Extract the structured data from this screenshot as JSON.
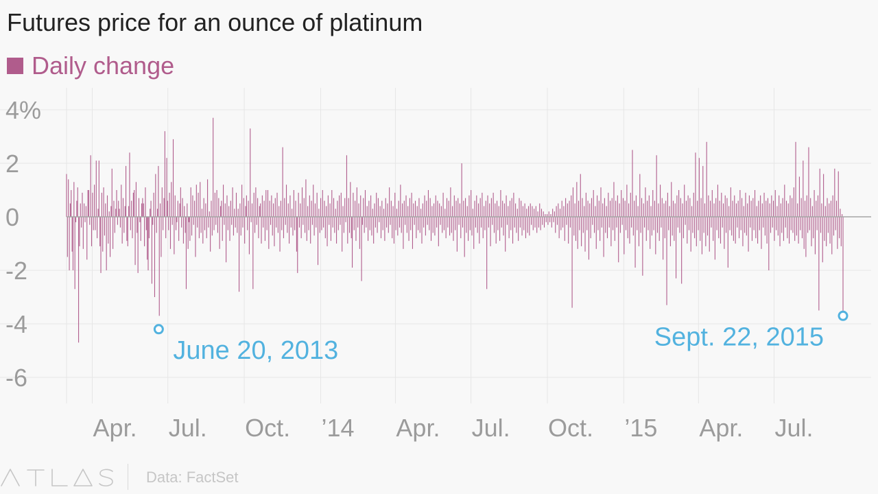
{
  "header": {
    "title": "Futures price for an ounce of platinum"
  },
  "legend": {
    "label": "Daily change",
    "color": "#b05c8c"
  },
  "colors": {
    "background": "#f8f8f8",
    "bars": "#b05c8c",
    "annotation": "#52b2df",
    "axis_text": "#9b9b9b",
    "grid": "#e6e6e6",
    "zero_line": "#a6a6a6",
    "footer_text": "#c6c6c6"
  },
  "footer": {
    "brand": "ATLAS",
    "source": "Data: FactSet"
  },
  "chart_data": {
    "type": "bar",
    "title": "Futures price for an ounce of platinum",
    "xlabel": "",
    "ylabel": "",
    "series": [
      {
        "name": "Daily change",
        "values": [
          1.6,
          -1.5,
          1.4,
          -2.0,
          0.5,
          1.0,
          -1.3,
          -2.0,
          1.3,
          -2.7,
          -0.2,
          0.6,
          1.1,
          -4.7,
          -1.1,
          0.5,
          -0.4,
          0.9,
          -1.2,
          0.5,
          -0.2,
          0.4,
          -1.6,
          1.0,
          1.0,
          -0.3,
          2.3,
          -1.1,
          0.9,
          -0.5,
          1.2,
          -0.5,
          2.1,
          -0.8,
          0.3,
          2.1,
          -1.1,
          -2.1,
          0.9,
          -1.3,
          1.1,
          -0.7,
          0.5,
          -2.0,
          0.8,
          -1.0,
          0.2,
          -1.5,
          0.4,
          1.8,
          -1.2,
          0.6,
          -0.6,
          0.3,
          1.0,
          -0.3,
          0.6,
          0.3,
          -0.4,
          1.2,
          -1.0,
          0.7,
          -0.6,
          0.4,
          1.9,
          -0.9,
          -1.1,
          0.4,
          2.4,
          -0.5,
          0.6,
          -0.8,
          0.9,
          1.0,
          -1.8,
          1.3,
          -0.6,
          -2.1,
          0.7,
          -0.2,
          -0.9,
          0.5,
          0.7,
          0.5,
          -1.1,
          1.1,
          -0.5,
          -1.6,
          -2.0,
          -0.8,
          0.3,
          0.6,
          -2.5,
          -0.3,
          0.9,
          -3.0,
          1.6,
          -0.6,
          0.3,
          1.9,
          -3.7,
          0.5,
          -1.5,
          1.1,
          -0.5,
          0.7,
          3.2,
          -0.8,
          2.2,
          0.6,
          -0.5,
          0.9,
          -1.2,
          1.3,
          -0.3,
          2.9,
          -1.4,
          0.8,
          -0.5,
          -0.2,
          0.6,
          -0.9,
          0.5,
          1.1,
          -0.4,
          0.7,
          -1.0,
          0.4,
          -0.6,
          -2.7,
          0.5,
          -1.2,
          -0.2,
          -0.9,
          1.1,
          -0.7,
          0.8,
          -0.3,
          0.6,
          -1.5,
          1.2,
          -0.4,
          0.9,
          -0.8,
          1.3,
          -0.6,
          0.3,
          -1.0,
          0.7,
          -0.5,
          0.5,
          -0.8,
          1.4,
          -0.4,
          0.2,
          -1.3,
          0.6,
          -0.7,
          3.7,
          -0.5,
          0.9,
          -0.3,
          1.0,
          -0.6,
          0.7,
          -1.2,
          0.4,
          0.6,
          -0.9,
          1.2,
          -0.3,
          0.5,
          -1.7,
          0.8,
          -0.5,
          0.4,
          -0.9,
          0.6,
          -0.3,
          1.1,
          -0.7,
          0.3,
          -0.4,
          0.9,
          -0.6,
          0.3,
          -2.8,
          0.5,
          -0.7,
          1.2,
          -0.4,
          0.7,
          -1.0,
          0.4,
          0.8,
          -0.5,
          0.6,
          -1.4,
          3.3,
          -0.2,
          0.5,
          -2.7,
          0.9,
          -0.6,
          1.1,
          -0.3,
          0.7,
          -0.8,
          0.4,
          0.5,
          -1.0,
          0.8,
          -0.4,
          0.6,
          -0.9,
          1.0,
          -0.5,
          1.0,
          -1.2,
          0.6,
          -0.3,
          0.8,
          -0.7,
          0.5,
          -1.1,
          0.7,
          -0.4,
          0.9,
          -0.6,
          0.4,
          -1.3,
          0.6,
          -0.5,
          2.6,
          -0.8,
          0.7,
          -0.3,
          1.2,
          -0.6,
          0.5,
          -1.0,
          0.8,
          -0.4,
          0.3,
          -0.7,
          1.0,
          -0.5,
          0.6,
          -1.3,
          -2.1,
          0.9,
          -0.4,
          0.5,
          -0.8,
          1.1,
          -0.3,
          0.7,
          -0.6,
          1.4,
          -0.9,
          0.4,
          -0.5,
          0.8,
          -1.0,
          0.6,
          -0.3,
          1.2,
          -0.7,
          0.5,
          -0.4,
          0.9,
          -1.8,
          0.3,
          -0.6,
          0.7,
          -0.5,
          1.0,
          -0.4,
          0.6,
          -0.8,
          0.4,
          -1.1,
          0.8,
          -0.3,
          0.5,
          -0.9,
          1.0,
          -0.4,
          0.7,
          -0.6,
          0.3,
          -1.0,
          0.6,
          -0.5,
          0.8,
          -0.3,
          0.9,
          -1.3,
          0.4,
          -0.6,
          0.7,
          -0.2,
          2.3,
          -1.0,
          0.7,
          -0.6,
          1.3,
          -0.8,
          -1.9,
          0.9,
          -0.5,
          0.6,
          -0.9,
          1.1,
          -0.4,
          0.5,
          -1.2,
          0.8,
          -2.4,
          -0.3,
          0.7,
          -0.6,
          1.0,
          -0.4,
          0.4,
          -0.9,
          0.6,
          -0.5,
          0.8,
          -0.7,
          0.3,
          -1.0,
          0.5,
          -0.4,
          0.9,
          -0.6,
          0.7,
          -0.2,
          0.4,
          -0.8,
          0.6,
          -0.5,
          0.3,
          -0.9,
          0.7,
          -0.4,
          0.5,
          -0.6,
          1.1,
          -0.3,
          0.6,
          -0.8,
          0.4,
          -1.0,
          0.9,
          -0.5,
          0.3,
          -0.7,
          0.6,
          -0.4,
          1.2,
          -0.6,
          0.5,
          -1.2,
          0.6,
          -0.3,
          0.8,
          -0.6,
          0.4,
          -0.9,
          0.7,
          -0.5,
          0.9,
          -1.2,
          0.5,
          -0.3,
          0.6,
          -0.8,
          0.4,
          -0.5,
          0.7,
          -0.6,
          0.3,
          -1.0,
          0.5,
          -0.4,
          0.8,
          -0.7,
          0.6,
          -0.3,
          1.0,
          -0.5,
          0.7,
          -0.9,
          0.4,
          -0.6,
          0.5,
          -0.7,
          0.8,
          -0.4,
          0.6,
          -1.1,
          0.5,
          -0.3,
          0.4,
          -0.6,
          0.9,
          -0.5,
          0.3,
          -0.8,
          0.7,
          -0.4,
          0.6,
          -0.7,
          1.1,
          -0.6,
          0.4,
          -0.9,
          0.8,
          -0.5,
          0.6,
          -1.3,
          0.7,
          -0.3,
          0.5,
          -0.8,
          2.0,
          -0.4,
          0.6,
          -1.5,
          0.7,
          -0.6,
          0.4,
          -0.9,
          0.8,
          -0.5,
          1.0,
          -0.7,
          0.3,
          -1.2,
          0.6,
          -0.4,
          0.8,
          -0.6,
          0.5,
          -1.0,
          0.7,
          -0.4,
          0.9,
          -0.8,
          0.4,
          -0.5,
          0.6,
          -2.7,
          0.8,
          -0.4,
          0.5,
          -1.1,
          0.7,
          -0.3,
          0.9,
          -0.6,
          0.5,
          -1.0,
          0.6,
          -0.5,
          0.4,
          -0.9,
          1.0,
          -0.4,
          0.6,
          -0.7,
          0.5,
          -1.3,
          0.8,
          -0.3,
          0.4,
          -0.8,
          0.6,
          -0.5,
          0.7,
          -1.0,
          0.9,
          -0.4,
          0.5,
          -0.6,
          0.3,
          -0.9,
          0.7,
          -0.4,
          0.6,
          -0.7,
          0.4,
          -0.5,
          0.5,
          -0.8,
          0.3,
          -0.6,
          0.4,
          -0.7,
          0.5,
          -0.3,
          0.4,
          -0.5,
          0.3,
          -0.4,
          0.4,
          -0.6,
          0.2,
          -0.4,
          0.5,
          -0.5,
          0.3,
          -0.3,
          0.2,
          -0.4,
          0.1,
          -0.2,
          0.1,
          -0.3,
          0.2,
          -0.2,
          0.1,
          -0.4,
          0.3,
          -0.2,
          0.2,
          -0.6,
          0.4,
          -0.3,
          0.5,
          -0.8,
          0.3,
          -0.5,
          0.6,
          -0.4,
          0.4,
          -0.9,
          0.7,
          -0.3,
          0.5,
          -1.0,
          0.6,
          -0.4,
          0.8,
          -3.4,
          1.1,
          -0.7,
          0.5,
          -0.9,
          1.3,
          -1.2,
          0.6,
          -0.5,
          1.6,
          -1.1,
          0.7,
          -0.6,
          0.4,
          -1.3,
          0.9,
          -0.5,
          0.6,
          -1.6,
          0.5,
          -0.8,
          0.7,
          -0.3,
          1.0,
          -0.6,
          0.4,
          -1.2,
          0.8,
          -0.5,
          0.6,
          -0.9,
          1.1,
          -0.4,
          0.5,
          -1.5,
          0.7,
          -0.6,
          0.4,
          -0.8,
          0.9,
          -0.4,
          0.6,
          -1.1,
          0.7,
          -0.5,
          1.3,
          -0.9,
          0.6,
          -0.4,
          0.8,
          -1.7,
          0.5,
          -0.6,
          1.0,
          -0.3,
          0.7,
          -1.4,
          0.6,
          -0.5,
          1.2,
          -0.8,
          0.5,
          -1.0,
          0.9,
          -0.4,
          2.5,
          -0.7,
          0.6,
          -1.9,
          0.8,
          -0.5,
          0.4,
          -1.1,
          1.6,
          -0.6,
          0.7,
          -2.2,
          0.5,
          -0.4,
          1.1,
          -0.9,
          0.6,
          -0.5,
          0.8,
          -1.2,
          0.4,
          -0.7,
          1.0,
          -0.5,
          0.6,
          -1.4,
          2.3,
          -0.6,
          0.5,
          -0.9,
          1.2,
          -0.4,
          0.7,
          -1.6,
          0.5,
          -0.8,
          0.6,
          -3.3,
          0.9,
          -0.5,
          0.4,
          -1.1,
          1.3,
          -0.7,
          0.6,
          -0.9,
          0.5,
          -2.3,
          0.8,
          -0.4,
          1.0,
          -0.6,
          0.7,
          -2.5,
          0.5,
          -0.8,
          1.2,
          -0.3,
          0.6,
          -1.0,
          0.8,
          -0.5,
          0.7,
          -1.3,
          0.4,
          -0.6,
          0.9,
          -0.8,
          2.4,
          -1.1,
          0.6,
          -0.5,
          2.2,
          -0.9,
          0.7,
          -1.4,
          1.9,
          -0.6,
          0.5,
          -1.1,
          2.8,
          -0.7,
          0.8,
          -1.3,
          0.6,
          -0.4,
          1.0,
          -0.9,
          0.5,
          -1.6,
          0.7,
          -0.5,
          1.2,
          -0.8,
          0.6,
          -1.0,
          0.9,
          -0.4,
          0.5,
          -1.2,
          0.8,
          -0.6,
          0.7,
          -1.9,
          0.4,
          -0.5,
          1.1,
          -0.7,
          0.6,
          -0.9,
          0.8,
          -1.0,
          0.5,
          -0.4,
          0.6,
          -0.8,
          1.0,
          -0.5,
          0.7,
          -1.1,
          0.4,
          -0.6,
          0.9,
          -0.7,
          0.5,
          -1.3,
          0.8,
          -0.4,
          0.6,
          -0.9,
          0.7,
          -0.5,
          1.0,
          -0.8,
          0.4,
          -1.0,
          0.6,
          -0.5,
          0.8,
          -1.2,
          0.5,
          -0.4,
          0.9,
          -0.7,
          0.6,
          -1.0,
          0.7,
          -2.0,
          0.5,
          -0.6,
          0.8,
          -0.4,
          0.6,
          -0.9,
          1.0,
          -0.5,
          0.4,
          -0.7,
          0.8,
          -1.1,
          0.5,
          -0.6,
          0.7,
          -0.9,
          1.2,
          -0.4,
          0.6,
          -0.8,
          0.5,
          -1.0,
          0.8,
          -0.5,
          0.7,
          -0.6,
          1.1,
          -0.9,
          2.8,
          -0.7,
          0.5,
          -1.0,
          1.5,
          -0.5,
          0.7,
          -0.8,
          2.1,
          -1.2,
          0.6,
          -1.5,
          0.8,
          -0.6,
          2.6,
          -0.5,
          0.7,
          -1.1,
          0.4,
          -0.8,
          1.0,
          -1.4,
          0.6,
          -0.5,
          0.8,
          -3.5,
          1.8,
          -0.6,
          0.5,
          -1.7,
          1.6,
          -0.9,
          0.4,
          -1.1,
          0.7,
          -0.6,
          0.5,
          -1.0,
          0.6,
          -1.4,
          0.8,
          -0.7,
          1.8,
          -0.5,
          0.6,
          -1.2,
          1.7,
          -0.8,
          0.3,
          -1.1,
          0.1,
          -3.7
        ]
      }
    ],
    "x": {
      "start": "2013-03-01",
      "end": "2015-09-22",
      "tick_labels": [
        "Apr.",
        "Jul.",
        "Oct.",
        "’14",
        "Apr.",
        "Jul.",
        "Oct.",
        "’15",
        "Apr.",
        "Jul."
      ]
    },
    "y": {
      "ylim": [
        -7,
        4.5
      ],
      "ticks": [
        4,
        2,
        0,
        -2,
        -4,
        -6
      ],
      "tick_labels": [
        "4%",
        "2",
        "0",
        "-2",
        "-4",
        "-6"
      ]
    },
    "grid": true,
    "annotations": [
      {
        "label": "June 20, 2013",
        "date": "2013-06-20",
        "value": -4.2
      },
      {
        "label": "Sept. 22, 2015",
        "date": "2015-09-22",
        "value": -3.7
      }
    ]
  }
}
